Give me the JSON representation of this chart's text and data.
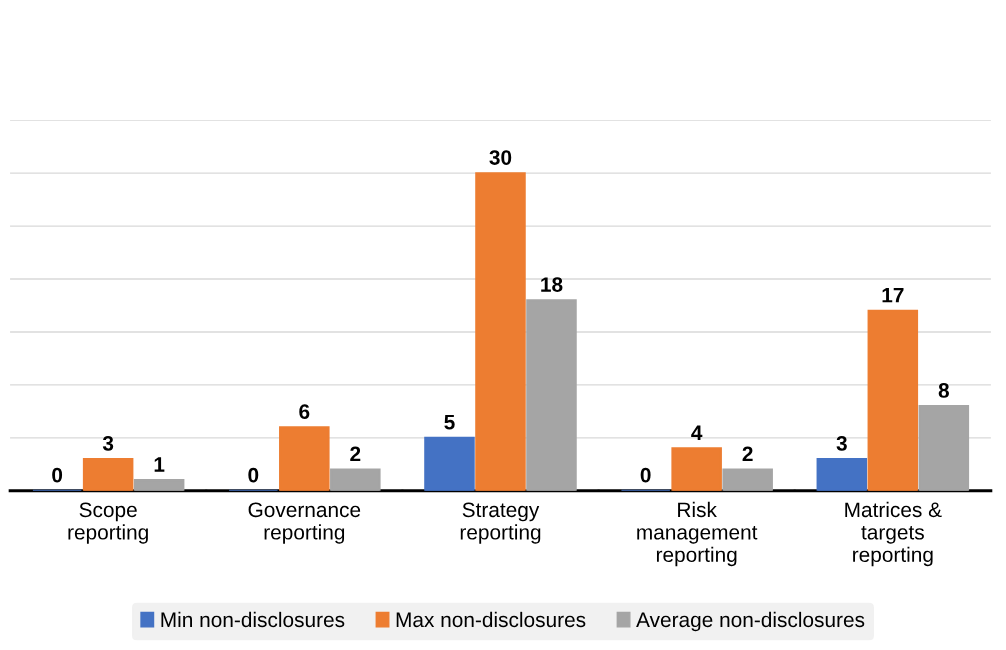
{
  "chart_data": {
    "type": "bar",
    "categories": [
      "Scope\nreporting",
      "Governance\nreporting",
      "Strategy\nreporting",
      "Risk\nmanagement\nreporting",
      "Matrices &\ntargets\nreporting"
    ],
    "series": [
      {
        "name": "Min non-disclosures",
        "color": "#4472c4",
        "values": [
          0,
          0,
          5,
          0,
          3
        ],
        "value_labels": [
          "0",
          "0",
          "5",
          "0",
          "3"
        ]
      },
      {
        "name": "Max non-disclosures",
        "color": "#ed7d31",
        "values": [
          3,
          6,
          30,
          4,
          17
        ],
        "value_labels": [
          "3",
          "6",
          "30",
          "4",
          "17"
        ]
      },
      {
        "name": "Average non-disclosures",
        "color": "#a5a5a5",
        "values": [
          1,
          2,
          18,
          2,
          8
        ],
        "value_labels": [
          "1",
          "2",
          "18",
          "2",
          "8"
        ]
      }
    ],
    "ylim": [
      0,
      35
    ],
    "yticks": [
      {
        "value": 0,
        "label": null
      },
      {
        "value": 5,
        "label": null
      },
      {
        "value": 10,
        "label": null
      },
      {
        "value": 15,
        "label": null
      },
      {
        "value": 20,
        "label": null
      },
      {
        "value": 25,
        "label": null
      },
      {
        "value": 30,
        "label": null
      },
      {
        "value": 35,
        "label": null
      }
    ],
    "grid": "y",
    "legend": "bottom"
  }
}
